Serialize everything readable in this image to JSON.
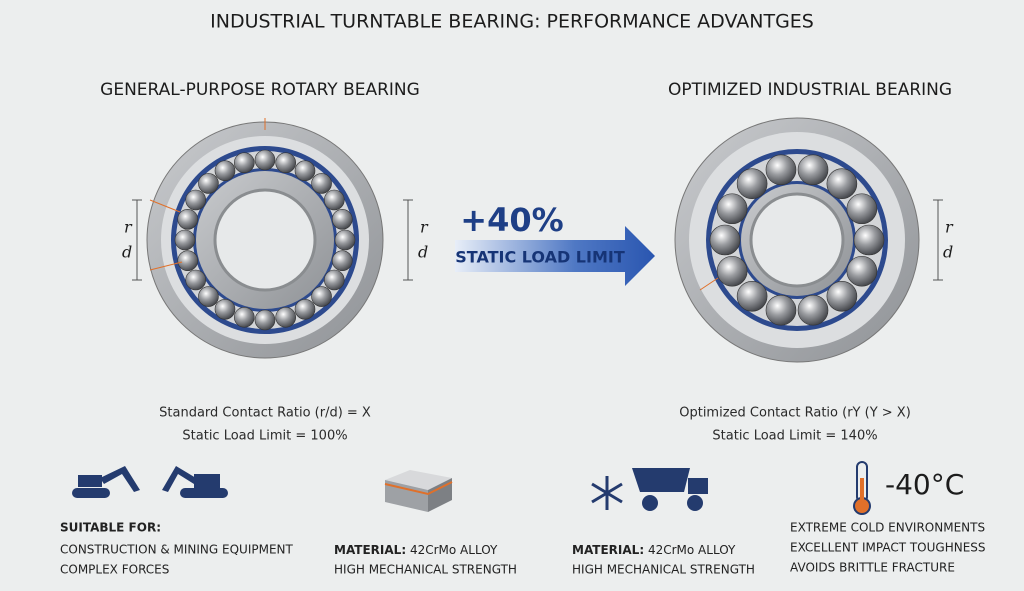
{
  "header": {
    "title": "INDUSTRIAL TURNTABLE BEARING: PERFORMANCE ADVANTGES"
  },
  "left": {
    "heading": "GENERAL-PURPOSE ROTARY BEARING",
    "inner_dims": [
      "r",
      "d"
    ],
    "outer_dims": [
      "r",
      "d"
    ],
    "ratio": "Standard Contact Ratio (r/d) = X",
    "load": "Static Load Limit = 100%"
  },
  "arrow": {
    "percent": "+40%",
    "label": "STATIC LOAD LIMIT"
  },
  "right": {
    "heading": "OPTIMIZED INDUSTRIAL BEARING",
    "dims": [
      "r",
      "d"
    ],
    "ratio": "Optimized Contact Ratio (rY (Y > X)",
    "load": "Static Load Limit = 140%"
  },
  "features": {
    "suitable": {
      "heading": "SUITABLE FOR:",
      "lines": [
        "CONSTRUCTION & MINING EQUIPMENT",
        "COMPLEX FORCES"
      ]
    },
    "material_left": {
      "key": "MATERIAL:",
      "value": "42CrMo ALLOY",
      "line": "HIGH MECHANICAL STRENGTH"
    },
    "material_right": {
      "key": "MATERIAL:",
      "value": "42CrMo ALLOY",
      "line": "HIGH MECHANICAL STRENGTH"
    },
    "cold": {
      "temp": "-40°C",
      "lines": [
        "EXTREME COLD ENVIRONMENTS",
        "EXCELLENT IMPACT TOUGHNESS",
        "AVOIDS BRITTLE FRACTURE"
      ]
    }
  }
}
